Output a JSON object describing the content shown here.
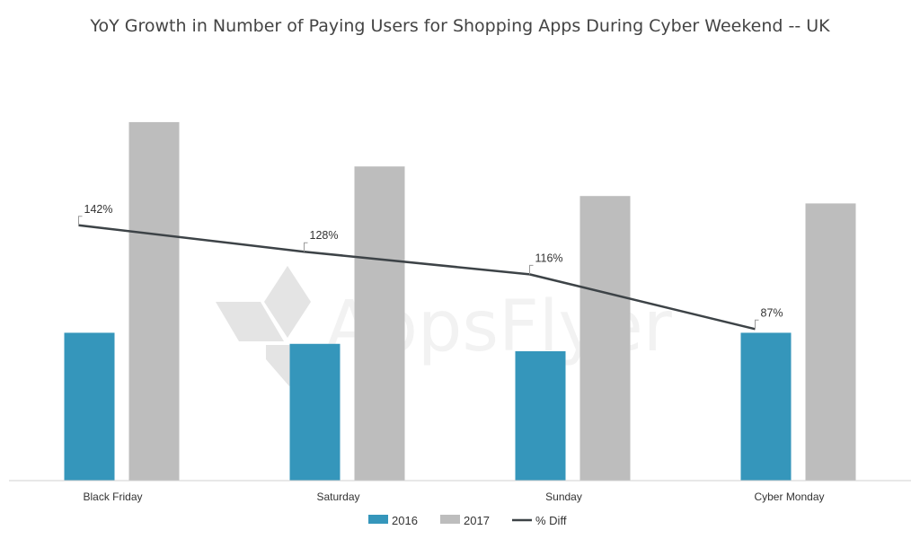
{
  "chart_data": {
    "type": "bar",
    "title": "YoY Growth in Number of Paying Users for Shopping Apps During Cyber Weekend -- UK",
    "categories": [
      "Black Friday",
      "Saturday",
      "Sunday",
      "Cyber Monday"
    ],
    "series": [
      {
        "name": "2016",
        "kind": "bar",
        "color": "#3596bb",
        "values": [
          0.4,
          0.37,
          0.35,
          0.4
        ]
      },
      {
        "name": "2017",
        "kind": "bar",
        "color": "#bdbdbd",
        "values": [
          0.97,
          0.85,
          0.77,
          0.75
        ]
      },
      {
        "name": "% Diff",
        "kind": "line",
        "color": "#3d4347",
        "values": [
          142,
          128,
          116,
          87
        ],
        "labels": [
          "142%",
          "128%",
          "116%",
          "87%"
        ]
      }
    ],
    "ylim": [
      0,
      1.05
    ],
    "line_ylim": [
      0,
      200
    ],
    "grid": false,
    "legend": "bottom"
  },
  "watermark": {
    "text": "AppsFlyer",
    "icon": "appsflyer-logo-icon"
  }
}
